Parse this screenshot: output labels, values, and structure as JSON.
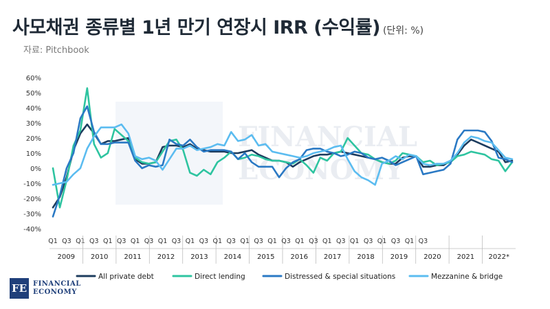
{
  "header": {
    "title": "사모채권 종류별 1년 만기 연장시 IRR (수익률)",
    "unit": "(단위: %)",
    "source": "자료: Pitchbook"
  },
  "logo": {
    "mark": "FE",
    "line1": "FINANCIAL",
    "line2": "ECONOMY"
  },
  "watermark": {
    "line1": "FINANCIAL",
    "line2": "ECONOMY"
  },
  "chart_data": {
    "type": "line",
    "title": "사모채권 종류별 1년 만기 연장시 IRR (수익률)",
    "ylabel": "",
    "xlabel": "",
    "ylim": [
      -40,
      60
    ],
    "yticks": [
      "60%",
      "50%",
      "40%",
      "30%",
      "20%",
      "10%",
      "0%",
      "-10%",
      "-20%",
      "-30%",
      "-40%"
    ],
    "years": [
      "2009",
      "2010",
      "2011",
      "2012",
      "2013",
      "2014",
      "2015",
      "2016",
      "2017",
      "2018",
      "2019",
      "2020",
      "2021",
      "2022*"
    ],
    "quarter_ticks": [
      "Q1",
      "Q3"
    ],
    "grid": false,
    "legend": "bottom",
    "series": [
      {
        "name": "All private debt",
        "color": "#1d3c5e",
        "values": [
          -26,
          -19,
          -6,
          12,
          23,
          29,
          23,
          16,
          18,
          18,
          19,
          20,
          6,
          3,
          3,
          4,
          14,
          15,
          15,
          14,
          16,
          13,
          12,
          11,
          11,
          11,
          10,
          10,
          11,
          12,
          9,
          7,
          5,
          5,
          4,
          1,
          4,
          6,
          8,
          9,
          9,
          10,
          11,
          10,
          9,
          8,
          7,
          6,
          4,
          3,
          3,
          7,
          8,
          8,
          1,
          1,
          2,
          2,
          5,
          9,
          15,
          19,
          17,
          15,
          13,
          11,
          4,
          5
        ]
      },
      {
        "name": "Direct lending",
        "color": "#2ec4a0",
        "values": [
          0,
          -26,
          -8,
          15,
          25,
          53,
          16,
          7,
          10,
          26,
          22,
          18,
          7,
          4,
          3,
          4,
          11,
          18,
          19,
          12,
          -3,
          -5,
          -1,
          -4,
          4,
          7,
          11,
          6,
          7,
          9,
          8,
          6,
          5,
          5,
          4,
          3,
          6,
          2,
          -3,
          7,
          5,
          10,
          11,
          20,
          15,
          10,
          9,
          6,
          4,
          3,
          5,
          10,
          9,
          8,
          4,
          5,
          2,
          3,
          4,
          8,
          9,
          11,
          10,
          9,
          6,
          5,
          -2,
          4
        ]
      },
      {
        "name": "Distressed & special situations",
        "color": "#2a79c4",
        "values": [
          -32,
          -18,
          0,
          10,
          33,
          41,
          24,
          16,
          16,
          17,
          17,
          17,
          5,
          0,
          2,
          1,
          2,
          19,
          16,
          15,
          19,
          14,
          11,
          12,
          12,
          12,
          11,
          6,
          10,
          4,
          1,
          1,
          1,
          -6,
          0,
          4,
          6,
          12,
          13,
          13,
          11,
          10,
          8,
          9,
          11,
          10,
          7,
          6,
          7,
          5,
          2,
          4,
          6,
          8,
          -4,
          -3,
          -2,
          -1,
          3,
          19,
          25,
          25,
          25,
          24,
          18,
          7,
          6,
          4
        ]
      },
      {
        "name": "Mezzanine & bridge",
        "color": "#5bbcf0",
        "values": [
          -11,
          -10,
          -9,
          -4,
          0,
          13,
          21,
          27,
          27,
          27,
          29,
          23,
          8,
          6,
          7,
          5,
          -1,
          6,
          13,
          13,
          15,
          12,
          13,
          14,
          16,
          15,
          24,
          18,
          19,
          22,
          15,
          16,
          11,
          10,
          9,
          8,
          7,
          8,
          10,
          11,
          12,
          14,
          15,
          6,
          -2,
          -6,
          -8,
          -11,
          3,
          5,
          8,
          6,
          9,
          8,
          3,
          2,
          3,
          3,
          5,
          10,
          17,
          21,
          20,
          18,
          17,
          12,
          7,
          6
        ]
      }
    ]
  }
}
